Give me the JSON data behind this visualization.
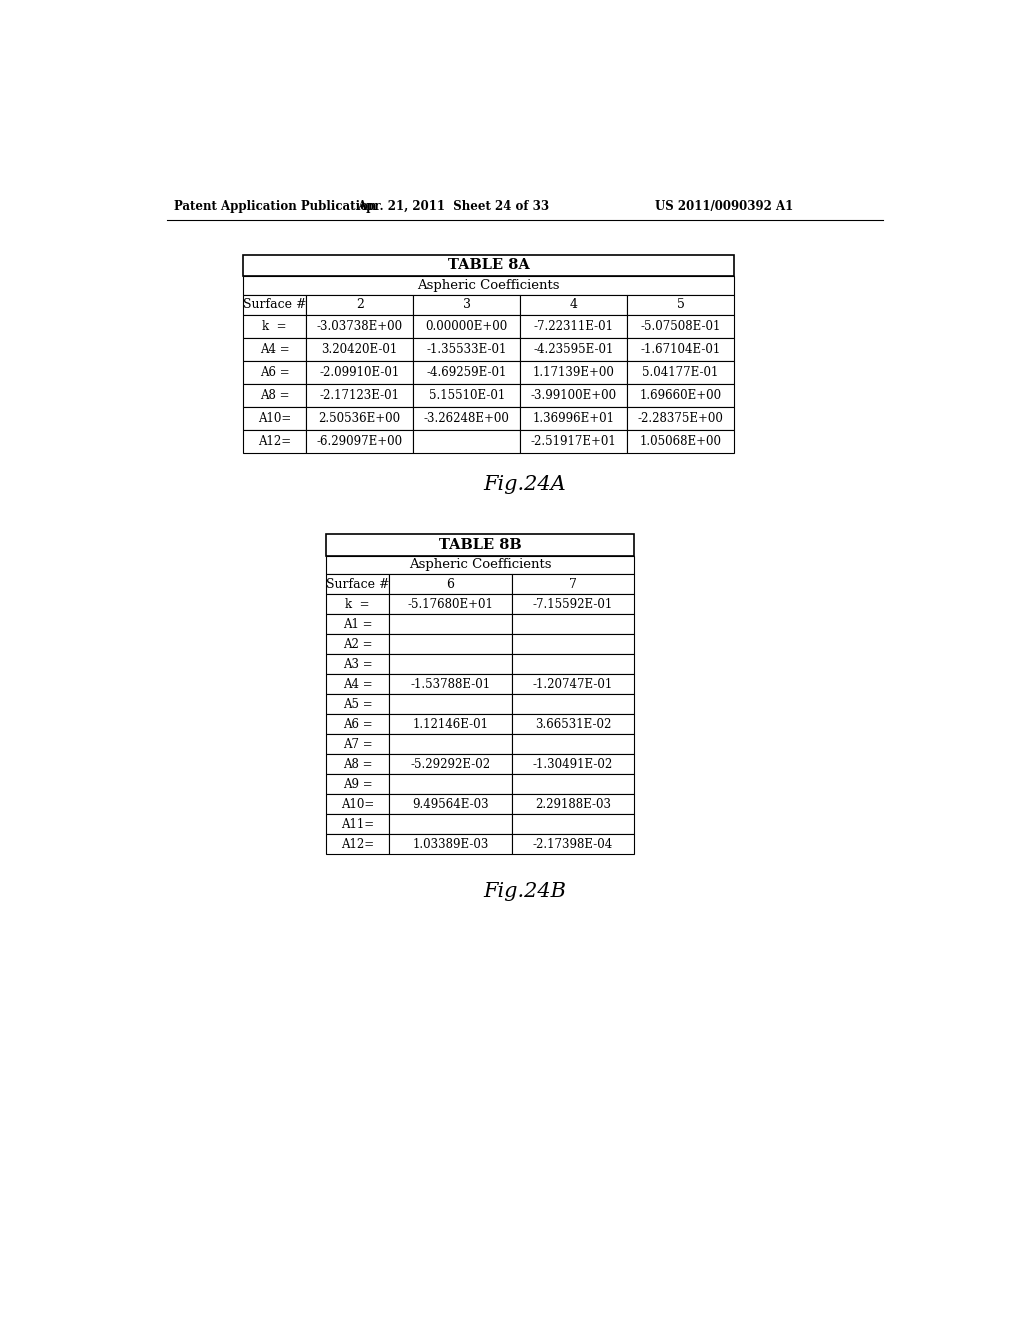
{
  "header_left": "Patent Application Publication",
  "header_mid": "Apr. 21, 2011  Sheet 24 of 33",
  "header_right": "US 2011/0090392 A1",
  "fig_label_a": "Fig.24A",
  "fig_label_b": "Fig.24B",
  "table_a_title": "TABLE 8A",
  "table_a_subtitle": "Aspheric Coefficients",
  "table_a_col_headers": [
    "Surface #",
    "2",
    "3",
    "4",
    "5"
  ],
  "table_a_rows": [
    [
      "k  =",
      "-3.03738E+00",
      "0.00000E+00",
      "-7.22311E-01",
      "-5.07508E-01"
    ],
    [
      "A4 =",
      "3.20420E-01",
      "-1.35533E-01",
      "-4.23595E-01",
      "-1.67104E-01"
    ],
    [
      "A6 =",
      "-2.09910E-01",
      "-4.69259E-01",
      "1.17139E+00",
      "5.04177E-01"
    ],
    [
      "A8 =",
      "-2.17123E-01",
      "5.15510E-01",
      "-3.99100E+00",
      "1.69660E+00"
    ],
    [
      "A10=",
      "2.50536E+00",
      "-3.26248E+00",
      "1.36996E+01",
      "-2.28375E+00"
    ],
    [
      "A12=",
      "-6.29097E+00",
      "",
      "-2.51917E+01",
      "1.05068E+00"
    ]
  ],
  "table_b_title": "TABLE 8B",
  "table_b_subtitle": "Aspheric Coefficients",
  "table_b_col_headers": [
    "Surface #",
    "6",
    "7"
  ],
  "table_b_rows": [
    [
      "k  =",
      "-5.17680E+01",
      "-7.15592E-01"
    ],
    [
      "A1 =",
      "",
      ""
    ],
    [
      "A2 =",
      "",
      ""
    ],
    [
      "A3 =",
      "",
      ""
    ],
    [
      "A4 =",
      "-1.53788E-01",
      "-1.20747E-01"
    ],
    [
      "A5 =",
      "",
      ""
    ],
    [
      "A6 =",
      "1.12146E-01",
      "3.66531E-02"
    ],
    [
      "A7 =",
      "",
      ""
    ],
    [
      "A8 =",
      "-5.29292E-02",
      "-1.30491E-02"
    ],
    [
      "A9 =",
      "",
      ""
    ],
    [
      "A10=",
      "9.49564E-03",
      "2.29188E-03"
    ],
    [
      "A11=",
      "",
      ""
    ],
    [
      "A12=",
      "1.03389E-03",
      "-2.17398E-04"
    ]
  ],
  "bg_color": "#ffffff",
  "table_border_color": "#000000",
  "text_color": "#000000"
}
